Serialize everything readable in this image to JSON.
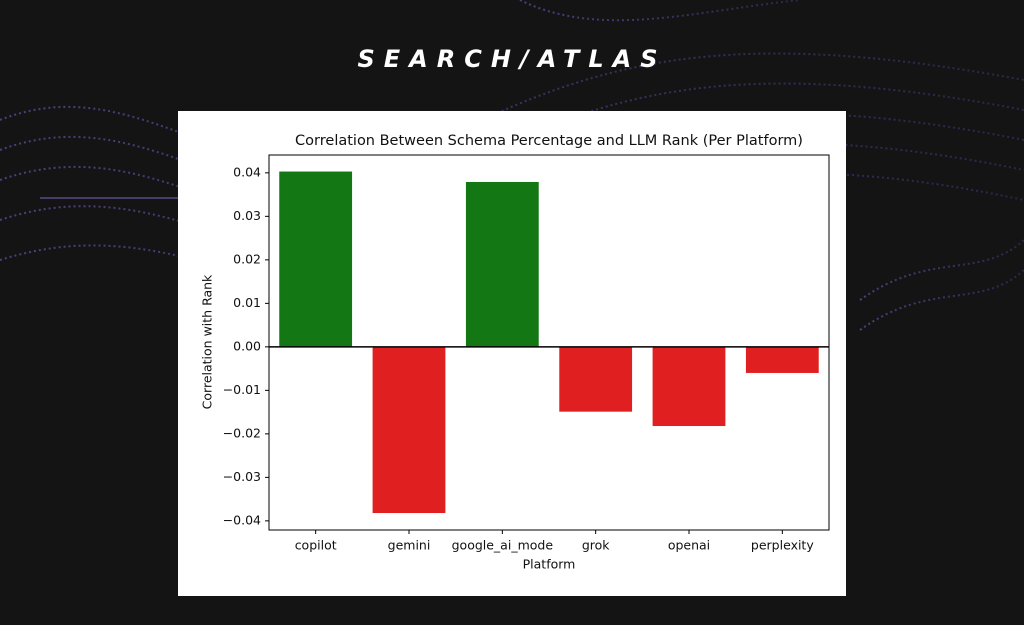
{
  "brand": "SEARCH/ATLAS",
  "chart_data": {
    "type": "bar",
    "title": "Correlation Between Schema Percentage and LLM Rank (Per Platform)",
    "x_label": "Platform",
    "y_label": "Correlation with Rank",
    "categories": [
      "copilot",
      "gemini",
      "google_ai_mode",
      "grok",
      "openai",
      "perplexity"
    ],
    "values": [
      0.0403,
      -0.0382,
      0.0379,
      -0.0149,
      -0.0182,
      -0.006
    ],
    "colors": [
      "#137813",
      "#e02020",
      "#137813",
      "#e02020",
      "#e02020",
      "#e02020"
    ],
    "ylim": [
      -0.0421,
      0.0441
    ],
    "yticks": [
      {
        "value": -0.04,
        "label": "−0.04"
      },
      {
        "value": -0.03,
        "label": "−0.03"
      },
      {
        "value": -0.02,
        "label": "−0.02"
      },
      {
        "value": -0.01,
        "label": "−0.01"
      },
      {
        "value": 0,
        "label": "0.00"
      },
      0.01,
      0.02,
      0.03,
      0.04
    ],
    "reference_line": 0,
    "grid": false
  }
}
